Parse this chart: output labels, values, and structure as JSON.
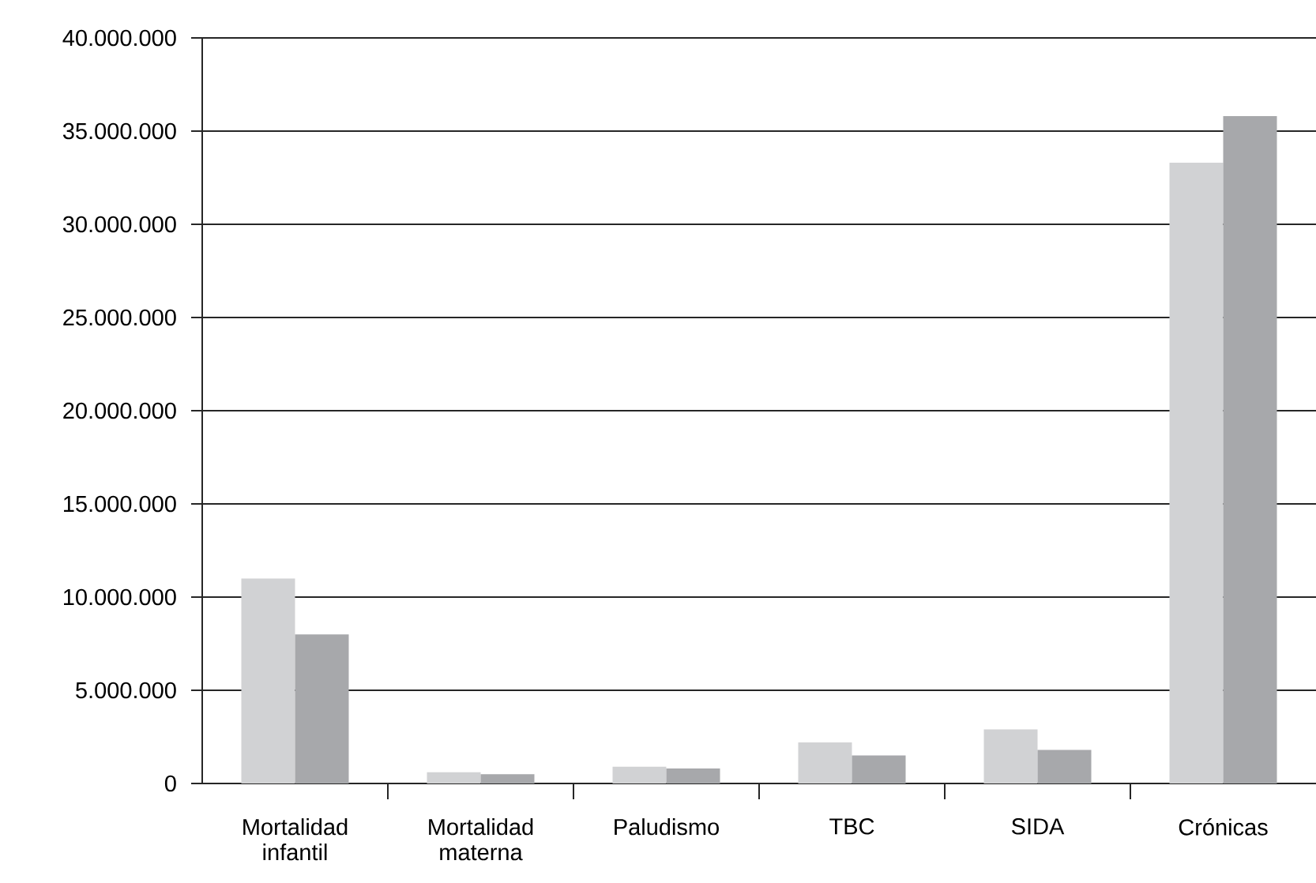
{
  "chart_data": {
    "type": "bar",
    "categories": [
      "Mortalidad infantil",
      "Mortalidad materna",
      "Paludismo",
      "TBC",
      "SIDA",
      "Crónicas"
    ],
    "series": [
      {
        "color": "#d1d2d4",
        "values": [
          11000000,
          600000,
          900000,
          2200000,
          2900000,
          33300000
        ]
      },
      {
        "color": "#a7a8ab",
        "values": [
          8000000,
          500000,
          800000,
          1500000,
          1800000,
          35800000
        ]
      }
    ],
    "ylim": [
      0,
      40000000
    ],
    "yticks": [
      {
        "value": 0,
        "label": "0"
      },
      {
        "value": 5000000,
        "label": "5.000.000"
      },
      {
        "value": 10000000,
        "label": "10.000.000"
      },
      {
        "value": 15000000,
        "label": "15.000.000"
      },
      {
        "value": 20000000,
        "label": "20.000.000"
      },
      {
        "value": 25000000,
        "label": "25.000.000"
      },
      {
        "value": 30000000,
        "label": "30.000.000"
      },
      {
        "value": 35000000,
        "label": "35.000.000"
      },
      {
        "value": 40000000,
        "label": "40.000.000"
      }
    ],
    "grid": "y"
  }
}
